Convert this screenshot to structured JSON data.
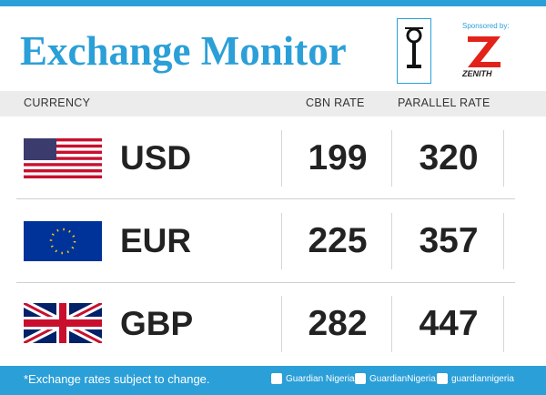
{
  "header": {
    "title": "Exchange Monitor",
    "sponsor_label": "Sponsored by:",
    "sponsor": "ZENITH"
  },
  "table": {
    "columns": [
      "CURRENCY",
      "CBN RATE",
      "PARALLEL RATE"
    ],
    "rows": [
      [
        "USD",
        "199",
        "320"
      ],
      [
        "EUR",
        "225",
        "357"
      ],
      [
        "GBP",
        "282",
        "447"
      ]
    ]
  },
  "footer": {
    "note": "*Exchange rates subject to change.",
    "facebook": "Guardian Nigeria",
    "twitter": "GuardianNigeria",
    "instagram": "guardiannigeria"
  }
}
